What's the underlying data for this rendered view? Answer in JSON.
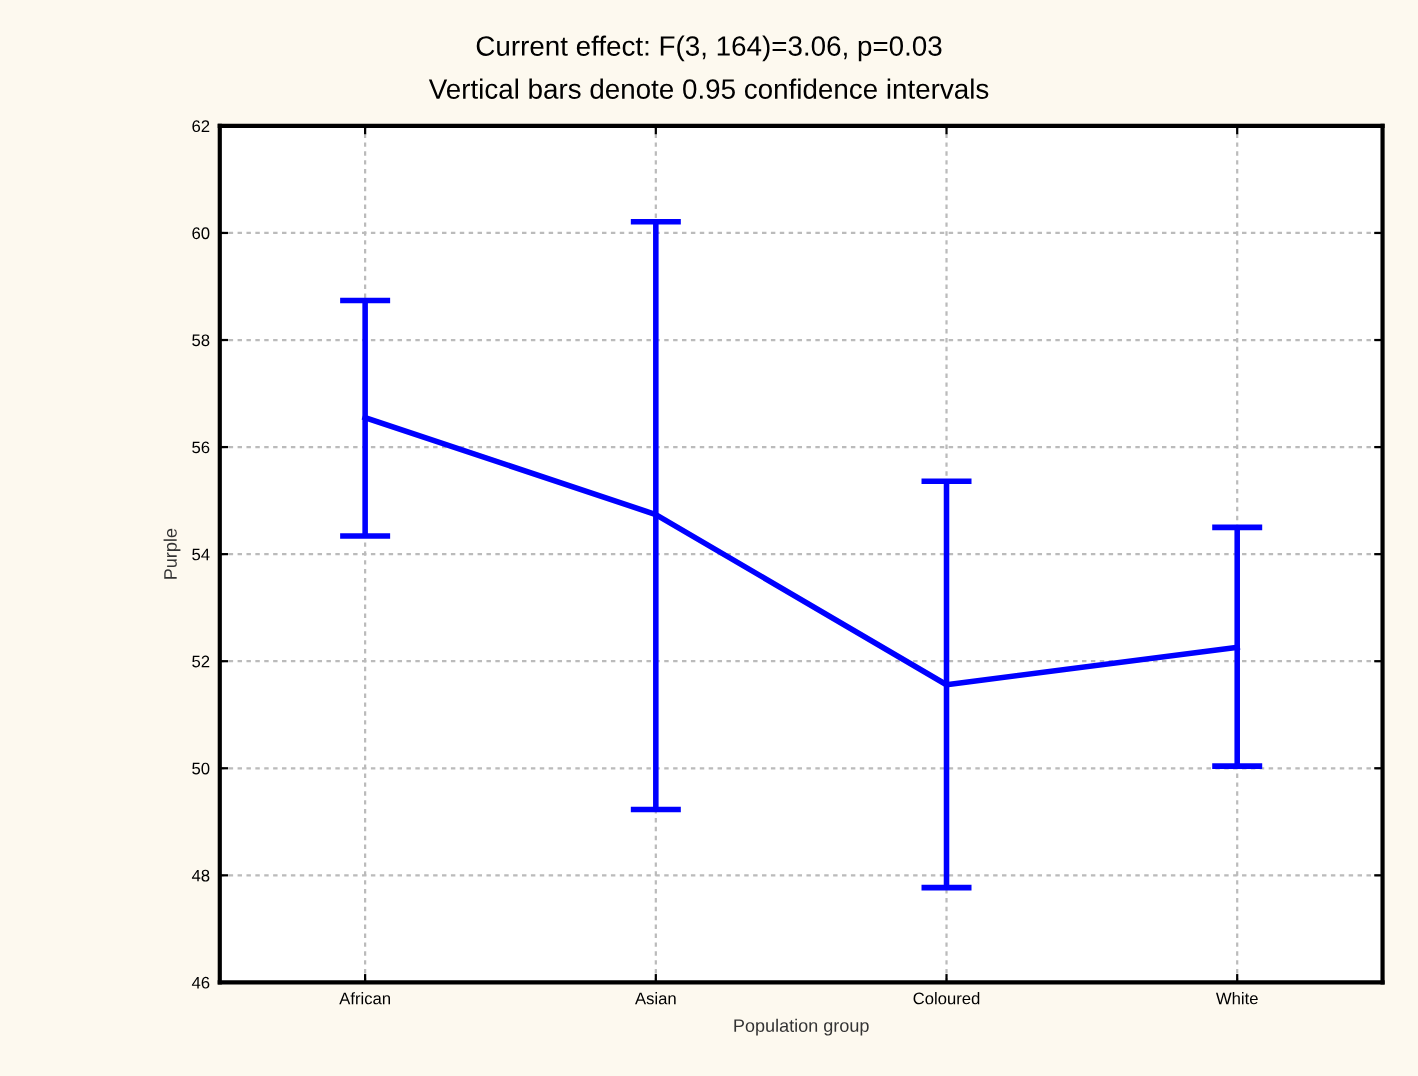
{
  "chart_data": {
    "type": "line",
    "title": "Current effect: F(3, 164)=3.06, p=0.03",
    "subtitle": "Vertical bars denote 0.95 confidence intervals",
    "xlabel": "Population group",
    "ylabel": "Purple",
    "categories": [
      "African",
      "Asian",
      "Coloured",
      "White"
    ],
    "series": [
      {
        "color": "#0000ff",
        "values": [
          56.55,
          54.74,
          51.56,
          52.26
        ],
        "errors": [
          [
            54.34,
            58.74
          ],
          [
            49.23,
            60.21
          ],
          [
            47.77,
            55.36
          ],
          [
            50.04,
            54.5
          ]
        ]
      }
    ],
    "ylim": [
      46,
      62
    ],
    "yticks": [
      46,
      48,
      50,
      52,
      54,
      56,
      58,
      60,
      62
    ],
    "grid": true,
    "marker": "none",
    "line_style": "solid"
  }
}
